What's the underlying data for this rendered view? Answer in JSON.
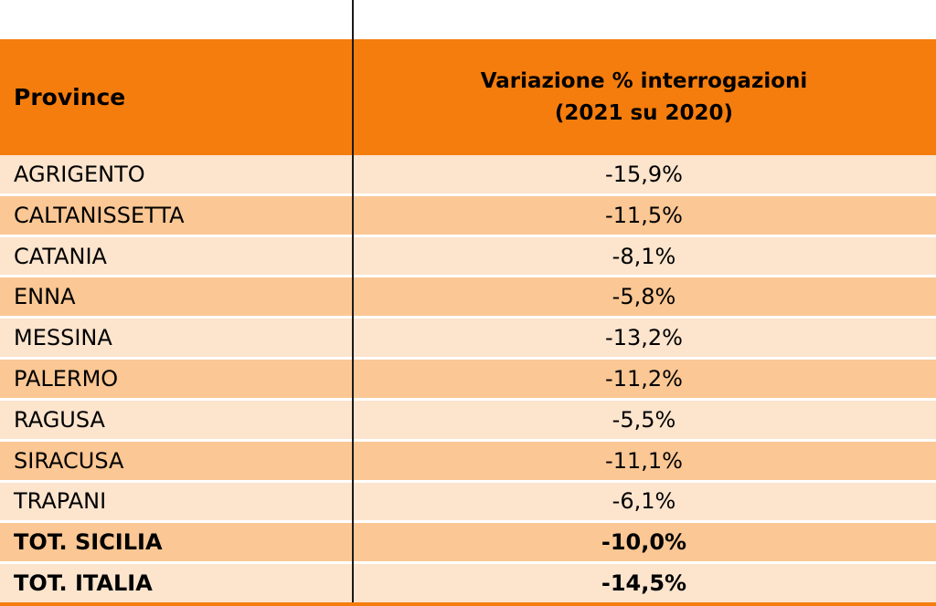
{
  "table": {
    "header": {
      "province_label": "Province",
      "variation_label_line1": "Variazione % interrogazioni",
      "variation_label_line2": "(2021 su 2020)"
    },
    "rows": [
      {
        "province": "AGRIGENTO",
        "variation": "-15,9%",
        "bold": false
      },
      {
        "province": "CALTANISSETTA",
        "variation": "-11,5%",
        "bold": false
      },
      {
        "province": "CATANIA",
        "variation": "-8,1%",
        "bold": false
      },
      {
        "province": "ENNA",
        "variation": "-5,8%",
        "bold": false
      },
      {
        "province": "MESSINA",
        "variation": "-13,2%",
        "bold": false
      },
      {
        "province": "PALERMO",
        "variation": "-11,2%",
        "bold": false
      },
      {
        "province": "RAGUSA",
        "variation": "-5,5%",
        "bold": false
      },
      {
        "province": "SIRACUSA",
        "variation": "-11,1%",
        "bold": false
      },
      {
        "province": "TRAPANI",
        "variation": "-6,1%",
        "bold": false
      },
      {
        "province": "TOT. SICILIA",
        "variation": "-10,0%",
        "bold": true
      },
      {
        "province": "TOT. ITALIA",
        "variation": "-14,5%",
        "bold": true
      }
    ],
    "colors": {
      "header_bg": "#F57D0D",
      "row_light": "#FCE4CD",
      "row_dark": "#FBC794",
      "divider": "#1A1A1A",
      "text": "#000000"
    }
  },
  "chart_data": {
    "type": "table",
    "title": "Variazione % interrogazioni (2021 su 2020)",
    "columns": [
      "Province",
      "Variazione % interrogazioni (2021 su 2020)"
    ],
    "categories": [
      "AGRIGENTO",
      "CALTANISSETTA",
      "CATANIA",
      "ENNA",
      "MESSINA",
      "PALERMO",
      "RAGUSA",
      "SIRACUSA",
      "TRAPANI",
      "TOT. SICILIA",
      "TOT. ITALIA"
    ],
    "values": [
      -15.9,
      -11.5,
      -8.1,
      -5.8,
      -13.2,
      -11.2,
      -5.5,
      -11.1,
      -6.1,
      -10.0,
      -14.5
    ],
    "value_format": "percent, comma decimal separator",
    "notes": "Rows TOT. SICILIA and TOT. ITALIA are totals shown in bold"
  }
}
